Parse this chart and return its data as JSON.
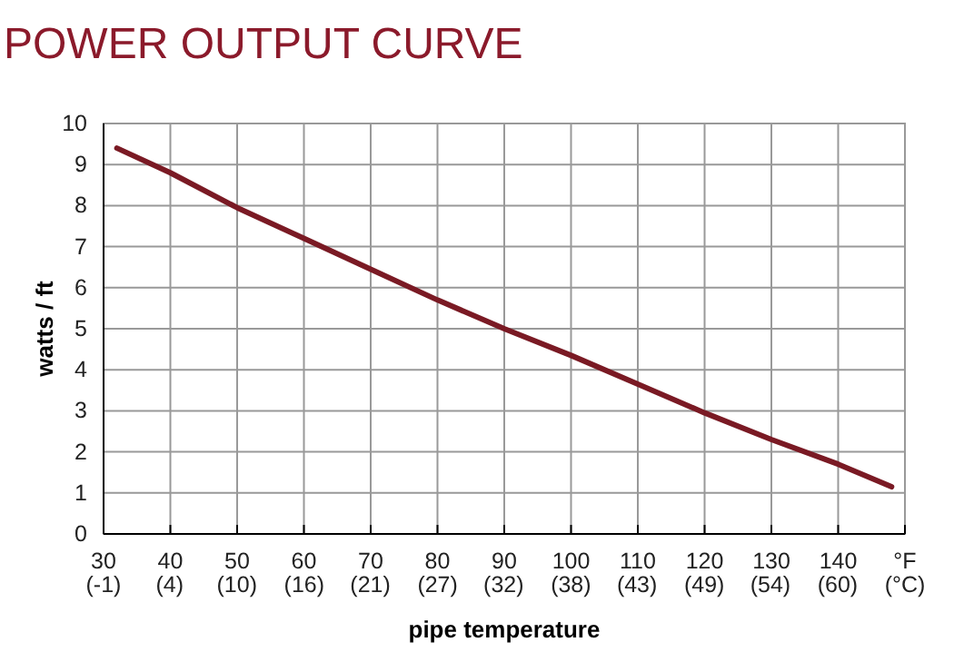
{
  "chart_data": {
    "type": "line",
    "title": "POWER OUTPUT CURVE",
    "xlabel": "pipe temperature",
    "ylabel": "watts / ft",
    "xlim": [
      30,
      150
    ],
    "xticks": [
      30,
      40,
      50,
      60,
      70,
      80,
      90,
      100,
      110,
      120,
      130,
      140,
      {
        "value": 150,
        "label": "°F"
      }
    ],
    "x2lim": [
      -1.1,
      65.6
    ],
    "x2ticks": [
      {
        "value": -1.1,
        "label": "(-1)"
      },
      {
        "value": 4.4,
        "label": "(4)"
      },
      {
        "value": 10,
        "label": "(10)"
      },
      {
        "value": 15.6,
        "label": "(16)"
      },
      {
        "value": 21.1,
        "label": "(21)"
      },
      {
        "value": 26.7,
        "label": "(27)"
      },
      {
        "value": 32.2,
        "label": "(32)"
      },
      {
        "value": 37.8,
        "label": "(38)"
      },
      {
        "value": 43.3,
        "label": "(43)"
      },
      {
        "value": 48.9,
        "label": "(49)"
      },
      {
        "value": 54.4,
        "label": "(54)"
      },
      {
        "value": 60,
        "label": "(60)"
      },
      {
        "value": 65.6,
        "label": "(°C)"
      }
    ],
    "ylim": [
      0,
      10
    ],
    "yticks": [
      0,
      1,
      2,
      3,
      4,
      5,
      6,
      7,
      8,
      9,
      10
    ],
    "grid": true,
    "x": [
      32,
      40,
      50,
      60,
      70,
      80,
      90,
      100,
      110,
      120,
      130,
      140,
      148
    ],
    "series": [
      {
        "color": "#7a1a24",
        "values": [
          9.4,
          8.8,
          7.95,
          7.2,
          6.45,
          5.7,
          5.0,
          4.35,
          3.65,
          2.95,
          2.3,
          1.7,
          1.15
        ]
      }
    ]
  }
}
